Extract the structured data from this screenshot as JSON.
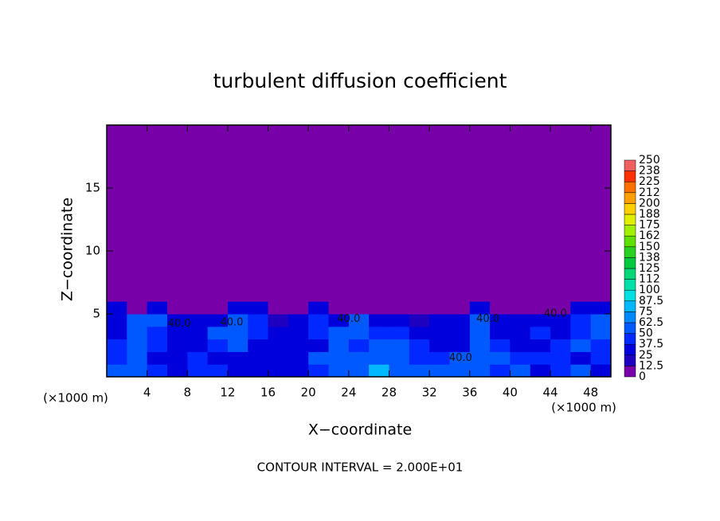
{
  "chart_data": {
    "type": "heatmap",
    "title": "turbulent diffusion coefficient",
    "x_label": "X−coordinate",
    "y_label": "Z−coordinate",
    "x_unit_left": "(×1000 m)",
    "x_unit_right": "(×1000 m)",
    "footnote": "CONTOUR INTERVAL = 2.000E+01",
    "xlim": [
      0,
      50
    ],
    "ylim": [
      0,
      20
    ],
    "xticks": [
      4,
      8,
      12,
      16,
      20,
      24,
      28,
      32,
      36,
      40,
      44,
      48
    ],
    "yticks": [
      5,
      10,
      15
    ],
    "xbins": [
      0,
      2,
      4,
      6,
      8,
      10,
      12,
      14,
      16,
      18,
      20,
      22,
      24,
      26,
      28,
      30,
      32,
      34,
      36,
      38,
      40,
      42,
      44,
      46,
      48,
      50
    ],
    "ybins": [
      0,
      1,
      2,
      3,
      4,
      5,
      6,
      7,
      20
    ],
    "values": [
      [
        50,
        62,
        40,
        37,
        45,
        40,
        30,
        25,
        30,
        37,
        45,
        62,
        62,
        75,
        62,
        62,
        62,
        50,
        62,
        40,
        50,
        37,
        45,
        50,
        37
      ],
      [
        45,
        50,
        37,
        37,
        40,
        37,
        25,
        37,
        37,
        37,
        62,
        50,
        50,
        50,
        50,
        40,
        45,
        50,
        62,
        50,
        40,
        45,
        40,
        37,
        40
      ],
      [
        40,
        62,
        40,
        37,
        37,
        40,
        62,
        37,
        30,
        25,
        37,
        62,
        45,
        50,
        50,
        40,
        37,
        37,
        50,
        40,
        37,
        37,
        40,
        50,
        45
      ],
      [
        37,
        62,
        45,
        37,
        37,
        50,
        62,
        40,
        25,
        25,
        40,
        50,
        62,
        45,
        40,
        37,
        37,
        25,
        62,
        37,
        37,
        40,
        37,
        45,
        50
      ],
      [
        30,
        50,
        50,
        37,
        30,
        25,
        50,
        40,
        20,
        30,
        45,
        37,
        50,
        37,
        25,
        20,
        25,
        30,
        50,
        30,
        25,
        37,
        30,
        40,
        50
      ],
      [
        25,
        12,
        37,
        12,
        12,
        12,
        25,
        25,
        12,
        12,
        25,
        12,
        12,
        12,
        12,
        12,
        0,
        0,
        25,
        12,
        12,
        12,
        12,
        25,
        37
      ],
      [
        0,
        0,
        0,
        0,
        0,
        0,
        0,
        12,
        12,
        0,
        0,
        0,
        0,
        0,
        0,
        0,
        0,
        0,
        0,
        0,
        0,
        0,
        0,
        0,
        0
      ],
      [
        0,
        0,
        0,
        0,
        0,
        0,
        0,
        0,
        0,
        0,
        0,
        0,
        0,
        0,
        0,
        0,
        0,
        0,
        0,
        0,
        0,
        0,
        0,
        0,
        0
      ]
    ],
    "levels": [
      0,
      12.5,
      25,
      37.5,
      50,
      62.5,
      75,
      87.5,
      100,
      112,
      125,
      138,
      150,
      162,
      175,
      188,
      200,
      212,
      225,
      238,
      250
    ],
    "level_colors": [
      "#7800a8",
      "#1e00c0",
      "#0000dc",
      "#0028ff",
      "#0058ff",
      "#0088ff",
      "#00b8ff",
      "#00e0e0",
      "#00e0a8",
      "#00d878",
      "#00c840",
      "#28d020",
      "#60e000",
      "#a0f000",
      "#e0f000",
      "#ffd000",
      "#ffa000",
      "#ff7000",
      "#ff3000",
      "#f06060"
    ],
    "annotations": [
      {
        "text": "40.0",
        "x": 7.2,
        "y": 4.2
      },
      {
        "text": "40.0",
        "x": 12.4,
        "y": 4.3
      },
      {
        "text": "40.0",
        "x": 24,
        "y": 4.6
      },
      {
        "text": "40.0",
        "x": 35.1,
        "y": 1.5
      },
      {
        "text": "40.0",
        "x": 37.8,
        "y": 4.6
      },
      {
        "text": "40.0",
        "x": 44.5,
        "y": 5
      }
    ]
  }
}
